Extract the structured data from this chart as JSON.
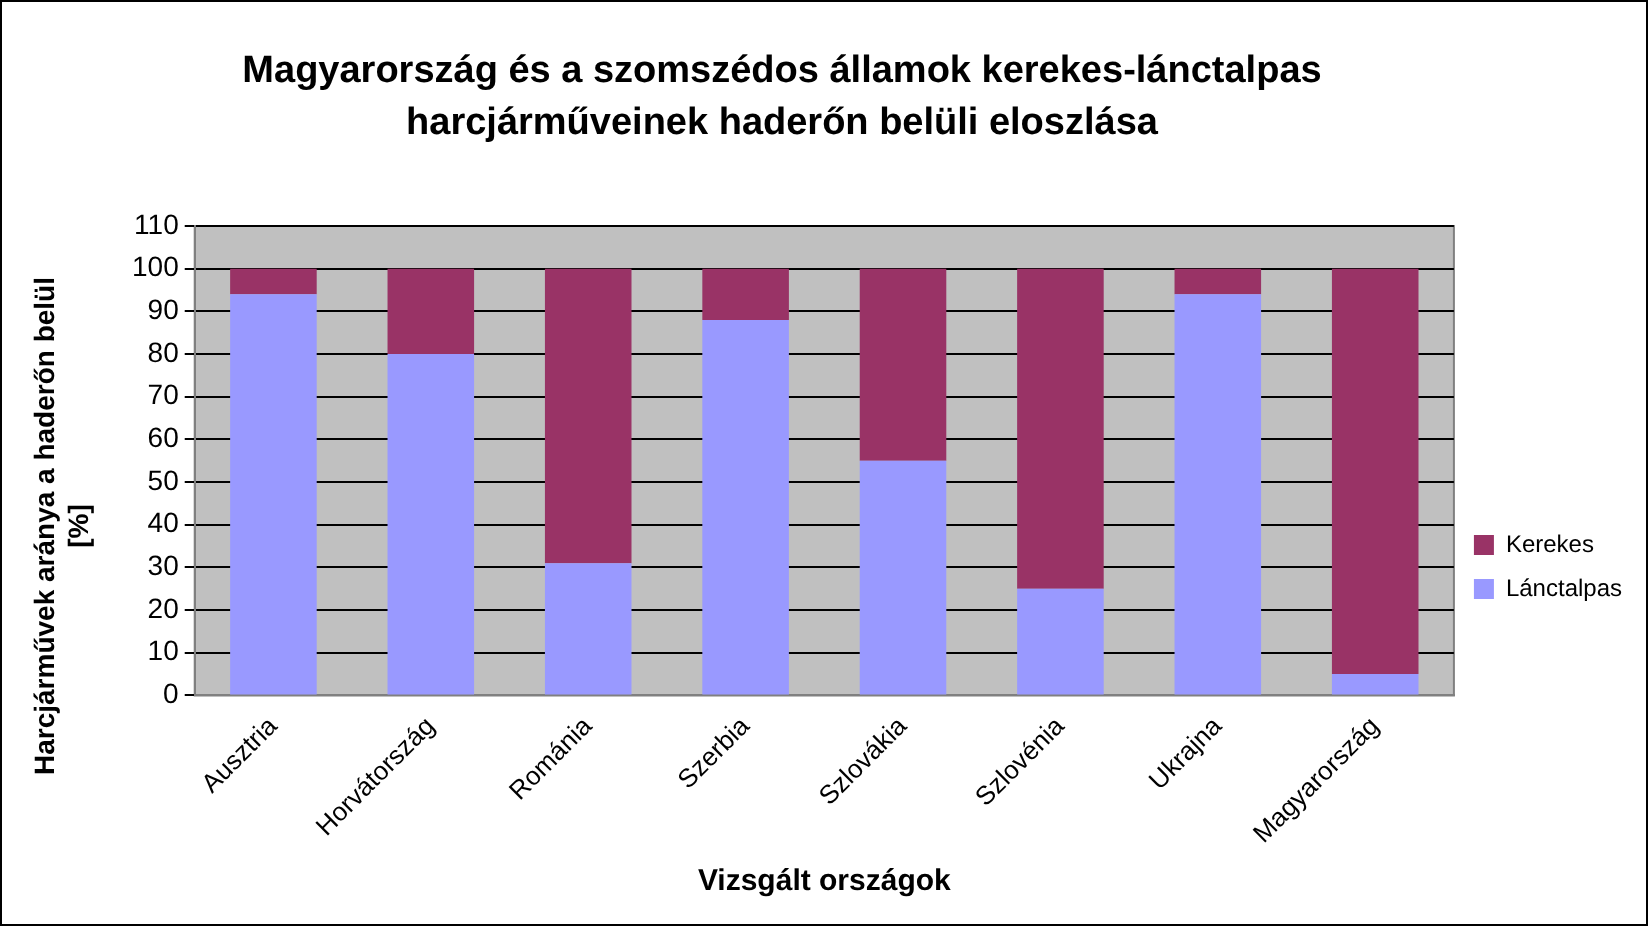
{
  "chart_data": {
    "type": "bar",
    "title": "Magyarország és a szomszédos államok kerekes-lánctalpas harcjárműveinek haderőn belüli eloszlása",
    "xlabel": "Vizsgált országok",
    "ylabel": "Harcjárművek aránya a haderőn belül [%]",
    "categories": [
      "Ausztria",
      "Horvátország",
      "Románia",
      "Szerbia",
      "Szlovákia",
      "Szlovénia",
      "Ukrajna",
      "Magyarország"
    ],
    "stacked": true,
    "series": [
      {
        "name": "Lánctalpas",
        "color": "#9999ff",
        "values": [
          94,
          80,
          31,
          88,
          55,
          25,
          94,
          5
        ]
      },
      {
        "name": "Kerekes",
        "color": "#993366",
        "values": [
          6,
          20,
          69,
          12,
          45,
          75,
          6,
          95
        ]
      }
    ],
    "ylim": [
      0,
      110
    ],
    "yticks": [
      0,
      10,
      20,
      30,
      40,
      50,
      60,
      70,
      80,
      90,
      100,
      110
    ],
    "grid": "y",
    "legend": "right"
  }
}
